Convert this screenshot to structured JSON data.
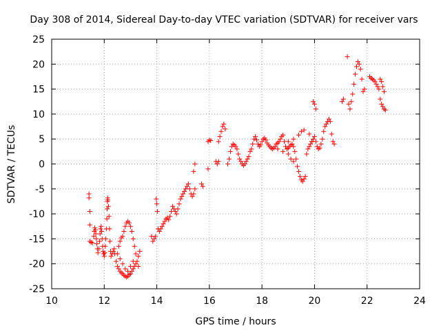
{
  "chart_data": {
    "type": "scatter",
    "title": "Day 308 of 2014, Sidereal Day-to-day VTEC variation (SDTVAR) for receiver vars",
    "xlabel": "GPS time / hours",
    "ylabel": "SDTVAR / TECUs",
    "xlim": [
      10,
      24
    ],
    "ylim": [
      -25,
      25
    ],
    "xticks": [
      10,
      12,
      14,
      16,
      18,
      20,
      22,
      24
    ],
    "yticks": [
      -25,
      -20,
      -15,
      -10,
      -5,
      0,
      5,
      10,
      15,
      20,
      25
    ],
    "grid": true,
    "marker": "+",
    "color": "#ff0000",
    "series": [
      {
        "name": "vars",
        "points": [
          [
            11.42,
            -6.0
          ],
          [
            11.42,
            -6.8
          ],
          [
            11.45,
            -9.5
          ],
          [
            11.45,
            -12.2
          ],
          [
            11.45,
            -15.5
          ],
          [
            11.5,
            -15.7
          ],
          [
            11.55,
            -15.8
          ],
          [
            11.6,
            -14.5
          ],
          [
            11.62,
            -13.5
          ],
          [
            11.64,
            -12.8
          ],
          [
            11.66,
            -13.2
          ],
          [
            11.68,
            -14.0
          ],
          [
            11.7,
            -15.0
          ],
          [
            11.72,
            -16.0
          ],
          [
            11.74,
            -17.0
          ],
          [
            11.76,
            -17.8
          ],
          [
            11.8,
            -17.0
          ],
          [
            11.82,
            -15.5
          ],
          [
            11.84,
            -14.0
          ],
          [
            11.86,
            -13.0
          ],
          [
            11.88,
            -12.5
          ],
          [
            11.9,
            -13.5
          ],
          [
            11.92,
            -15.0
          ],
          [
            11.94,
            -16.5
          ],
          [
            11.96,
            -17.5
          ],
          [
            11.98,
            -18.0
          ],
          [
            12.0,
            -18.5
          ],
          [
            12.02,
            -17.8
          ],
          [
            12.04,
            -16.5
          ],
          [
            12.06,
            -15.0
          ],
          [
            12.08,
            -13.0
          ],
          [
            12.1,
            -11.0
          ],
          [
            12.11,
            -9.0
          ],
          [
            12.12,
            -7.5
          ],
          [
            12.13,
            -6.8
          ],
          [
            12.14,
            -7.2
          ],
          [
            12.16,
            -8.5
          ],
          [
            12.18,
            -10.5
          ],
          [
            12.2,
            -13.0
          ],
          [
            12.22,
            -15.5
          ],
          [
            12.24,
            -17.5
          ],
          [
            12.26,
            -18.5
          ],
          [
            12.3,
            -18.0
          ],
          [
            12.34,
            -17.5
          ],
          [
            12.38,
            -17.0
          ],
          [
            12.4,
            -18.0
          ],
          [
            12.45,
            -19.5
          ],
          [
            12.5,
            -20.5
          ],
          [
            12.55,
            -21.0
          ],
          [
            12.6,
            -21.5
          ],
          [
            12.65,
            -21.8
          ],
          [
            12.7,
            -22.0
          ],
          [
            12.75,
            -22.3
          ],
          [
            12.8,
            -22.5
          ],
          [
            12.85,
            -22.7
          ],
          [
            12.9,
            -22.5
          ],
          [
            12.95,
            -22.2
          ],
          [
            13.0,
            -22.0
          ],
          [
            13.05,
            -21.5
          ],
          [
            13.1,
            -21.0
          ],
          [
            13.15,
            -20.5
          ],
          [
            13.2,
            -20.0
          ],
          [
            12.5,
            -18.0
          ],
          [
            12.55,
            -16.5
          ],
          [
            12.6,
            -15.5
          ],
          [
            12.65,
            -14.8
          ],
          [
            12.7,
            -14.5
          ],
          [
            12.75,
            -13.5
          ],
          [
            12.8,
            -12.5
          ],
          [
            12.85,
            -11.8
          ],
          [
            12.9,
            -11.5
          ],
          [
            12.95,
            -11.8
          ],
          [
            13.0,
            -12.5
          ],
          [
            13.05,
            -13.5
          ],
          [
            13.1,
            -15.0
          ],
          [
            13.15,
            -16.5
          ],
          [
            13.2,
            -18.0
          ],
          [
            13.25,
            -19.5
          ],
          [
            13.3,
            -20.5
          ],
          [
            13.3,
            -18.5
          ],
          [
            13.35,
            -17.5
          ],
          [
            12.6,
            -19.0
          ],
          [
            12.7,
            -20.0
          ],
          [
            12.8,
            -21.0
          ],
          [
            12.9,
            -21.5
          ],
          [
            13.0,
            -20.5
          ],
          [
            13.1,
            -19.5
          ],
          [
            13.8,
            -14.5
          ],
          [
            13.85,
            -15.5
          ],
          [
            13.9,
            -15.0
          ],
          [
            13.95,
            -14.5
          ],
          [
            13.98,
            -7.0
          ],
          [
            14.0,
            -8.0
          ],
          [
            14.02,
            -9.5
          ],
          [
            14.05,
            -13.0
          ],
          [
            14.1,
            -13.5
          ],
          [
            14.15,
            -13.0
          ],
          [
            14.2,
            -12.5
          ],
          [
            14.25,
            -12.0
          ],
          [
            14.3,
            -11.5
          ],
          [
            14.35,
            -11.0
          ],
          [
            14.4,
            -10.8
          ],
          [
            14.45,
            -11.2
          ],
          [
            14.5,
            -10.5
          ],
          [
            14.55,
            -9.5
          ],
          [
            14.6,
            -8.5
          ],
          [
            14.65,
            -9.0
          ],
          [
            14.7,
            -9.5
          ],
          [
            14.75,
            -10.0
          ],
          [
            14.8,
            -9.0
          ],
          [
            14.85,
            -8.0
          ],
          [
            14.9,
            -7.0
          ],
          [
            14.95,
            -6.5
          ],
          [
            15.0,
            -6.0
          ],
          [
            15.05,
            -5.5
          ],
          [
            15.1,
            -5.0
          ],
          [
            15.15,
            -4.5
          ],
          [
            15.2,
            -4.0
          ],
          [
            15.25,
            -5.0
          ],
          [
            15.3,
            -6.0
          ],
          [
            15.35,
            -6.5
          ],
          [
            15.4,
            -6.0
          ],
          [
            15.45,
            -5.0
          ],
          [
            15.4,
            -1.5
          ],
          [
            15.45,
            0.0
          ],
          [
            15.7,
            -4.0
          ],
          [
            15.75,
            -4.5
          ],
          [
            15.95,
            -1.0
          ],
          [
            15.95,
            4.5
          ],
          [
            16.0,
            4.8
          ],
          [
            16.05,
            4.7
          ],
          [
            16.25,
            0.5
          ],
          [
            16.3,
            0.0
          ],
          [
            16.35,
            0.5
          ],
          [
            16.35,
            4.5
          ],
          [
            16.4,
            5.5
          ],
          [
            16.45,
            6.5
          ],
          [
            16.5,
            7.5
          ],
          [
            16.55,
            8.0
          ],
          [
            16.6,
            7.0
          ],
          [
            16.7,
            0.0
          ],
          [
            16.75,
            1.0
          ],
          [
            16.8,
            2.5
          ],
          [
            16.85,
            3.5
          ],
          [
            16.9,
            4.0
          ],
          [
            16.95,
            3.8
          ],
          [
            17.0,
            3.5
          ],
          [
            17.05,
            3.0
          ],
          [
            17.1,
            2.0
          ],
          [
            17.15,
            1.0
          ],
          [
            17.2,
            0.5
          ],
          [
            17.25,
            0.0
          ],
          [
            17.3,
            -0.3
          ],
          [
            17.35,
            0.0
          ],
          [
            17.4,
            0.5
          ],
          [
            17.45,
            1.0
          ],
          [
            17.5,
            1.5
          ],
          [
            17.55,
            2.5
          ],
          [
            17.6,
            3.0
          ],
          [
            17.65,
            4.0
          ],
          [
            17.7,
            5.0
          ],
          [
            17.75,
            5.5
          ],
          [
            17.8,
            4.8
          ],
          [
            17.85,
            4.0
          ],
          [
            17.9,
            3.5
          ],
          [
            17.95,
            3.8
          ],
          [
            18.0,
            4.5
          ],
          [
            18.05,
            5.0
          ],
          [
            18.1,
            5.2
          ],
          [
            18.15,
            4.8
          ],
          [
            18.2,
            4.2
          ],
          [
            18.25,
            3.8
          ],
          [
            18.3,
            3.5
          ],
          [
            18.35,
            3.2
          ],
          [
            18.4,
            3.0
          ],
          [
            18.45,
            3.2
          ],
          [
            18.5,
            3.5
          ],
          [
            18.55,
            4.0
          ],
          [
            18.6,
            4.2
          ],
          [
            18.65,
            4.5
          ],
          [
            18.7,
            5.0
          ],
          [
            18.75,
            5.5
          ],
          [
            18.8,
            5.8
          ],
          [
            18.85,
            4.5
          ],
          [
            18.9,
            3.5
          ],
          [
            18.95,
            3.0
          ],
          [
            19.0,
            3.2
          ],
          [
            19.05,
            3.5
          ],
          [
            19.1,
            3.8
          ],
          [
            19.15,
            4.0
          ],
          [
            19.2,
            3.5
          ],
          [
            19.25,
            2.5
          ],
          [
            19.3,
            1.0
          ],
          [
            19.35,
            -0.5
          ],
          [
            19.4,
            -1.5
          ],
          [
            19.45,
            -2.5
          ],
          [
            19.5,
            -3.2
          ],
          [
            19.55,
            -3.5
          ],
          [
            19.6,
            -3.0
          ],
          [
            19.65,
            -2.5
          ],
          [
            19.7,
            2.0
          ],
          [
            19.75,
            3.0
          ],
          [
            19.8,
            3.5
          ],
          [
            19.85,
            4.0
          ],
          [
            19.9,
            4.5
          ],
          [
            19.95,
            5.0
          ],
          [
            20.0,
            5.5
          ],
          [
            20.05,
            4.5
          ],
          [
            20.1,
            3.5
          ],
          [
            20.15,
            3.0
          ],
          [
            20.2,
            3.2
          ],
          [
            20.25,
            4.0
          ],
          [
            20.3,
            5.0
          ],
          [
            20.35,
            6.5
          ],
          [
            20.4,
            7.5
          ],
          [
            20.45,
            8.0
          ],
          [
            20.5,
            8.5
          ],
          [
            20.55,
            9.0
          ],
          [
            20.6,
            8.5
          ],
          [
            20.65,
            6.0
          ],
          [
            20.7,
            4.5
          ],
          [
            20.75,
            4.0
          ],
          [
            19.95,
            12.5
          ],
          [
            20.0,
            12.0
          ],
          [
            20.05,
            11.0
          ],
          [
            19.0,
            4.5
          ],
          [
            19.2,
            5.0
          ],
          [
            19.4,
            5.8
          ],
          [
            19.5,
            6.5
          ],
          [
            19.6,
            6.8
          ],
          [
            19.8,
            6.0
          ],
          [
            19.9,
            4.5
          ],
          [
            18.6,
            3.0
          ],
          [
            18.8,
            2.5
          ],
          [
            19.0,
            2.0
          ],
          [
            19.1,
            1.0
          ],
          [
            19.2,
            0.5
          ],
          [
            21.05,
            12.5
          ],
          [
            21.1,
            13.0
          ],
          [
            21.3,
            12.0
          ],
          [
            21.35,
            11.0
          ],
          [
            21.4,
            12.5
          ],
          [
            21.45,
            14.0
          ],
          [
            21.5,
            16.0
          ],
          [
            21.55,
            18.0
          ],
          [
            21.6,
            19.5
          ],
          [
            21.65,
            20.5
          ],
          [
            21.7,
            20.0
          ],
          [
            21.75,
            19.0
          ],
          [
            21.8,
            17.0
          ],
          [
            21.25,
            21.5
          ],
          [
            21.85,
            14.5
          ],
          [
            21.9,
            15.0
          ],
          [
            22.1,
            17.5
          ],
          [
            22.15,
            17.2
          ],
          [
            22.2,
            17.0
          ],
          [
            22.25,
            16.8
          ],
          [
            22.3,
            16.5
          ],
          [
            22.35,
            16.0
          ],
          [
            22.4,
            15.5
          ],
          [
            22.45,
            15.0
          ],
          [
            22.5,
            17.0
          ],
          [
            22.55,
            16.5
          ],
          [
            22.6,
            15.5
          ],
          [
            22.65,
            14.5
          ],
          [
            22.5,
            13.0
          ],
          [
            22.55,
            12.0
          ],
          [
            22.6,
            11.5
          ],
          [
            22.65,
            11.0
          ],
          [
            22.7,
            10.8
          ]
        ]
      }
    ]
  }
}
